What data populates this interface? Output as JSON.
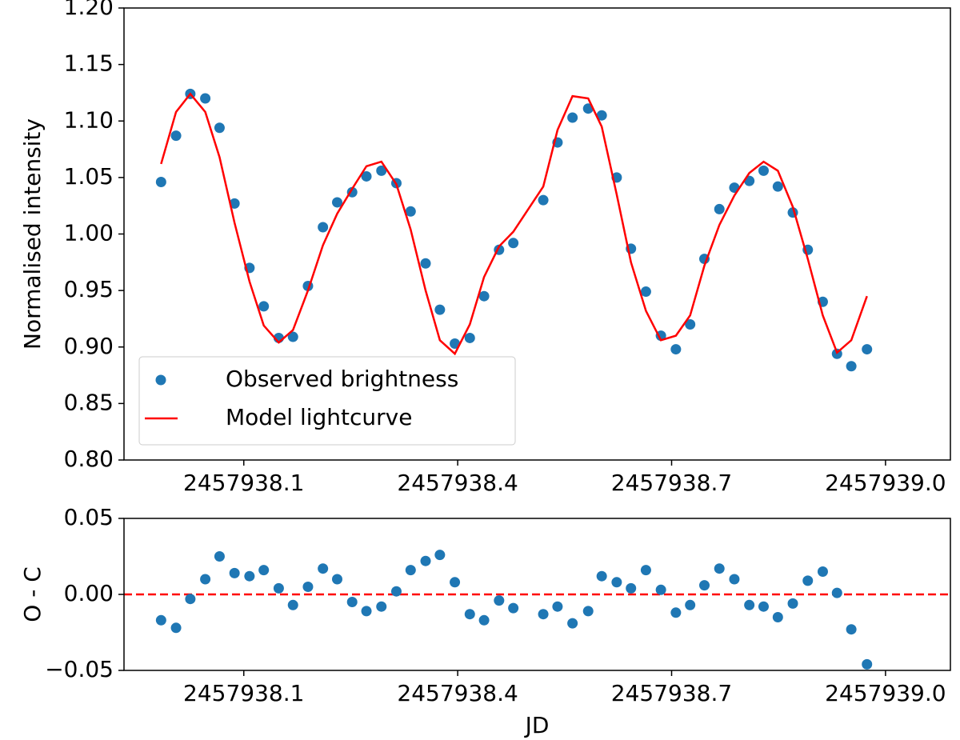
{
  "chart_data": [
    {
      "type": "scatter",
      "ylabel": "Normalised intensity",
      "legend": "lower left",
      "x": [
        2457937.984,
        2457938.005,
        2457938.025,
        2457938.046,
        2457938.066,
        2457938.087,
        2457938.108,
        2457938.128,
        2457938.149,
        2457938.169,
        2457938.19,
        2457938.211,
        2457938.231,
        2457938.252,
        2457938.272,
        2457938.293,
        2457938.314,
        2457938.334,
        2457938.355,
        2457938.375,
        2457938.396,
        2457938.417,
        2457938.437,
        2457938.458,
        2457938.478,
        2457938.52,
        2457938.54,
        2457938.561,
        2457938.583,
        2457938.602,
        2457938.623,
        2457938.643,
        2457938.664,
        2457938.685,
        2457938.706,
        2457938.726,
        2457938.746,
        2457938.767,
        2457938.788,
        2457938.809,
        2457938.829,
        2457938.849,
        2457938.87,
        2457938.891,
        2457938.912,
        2457938.932,
        2457938.952,
        2457938.974
      ],
      "series": [
        {
          "name": "Observed brightness",
          "color": "#1f77b4",
          "style": "markers",
          "values": [
            1.046,
            1.087,
            1.124,
            1.12,
            1.094,
            1.027,
            0.97,
            0.936,
            0.908,
            0.909,
            0.954,
            1.006,
            1.028,
            1.037,
            1.051,
            1.056,
            1.045,
            1.02,
            0.974,
            0.933,
            0.903,
            0.908,
            0.945,
            0.986,
            0.992,
            1.03,
            1.081,
            1.103,
            1.111,
            1.105,
            1.05,
            0.987,
            0.949,
            0.91,
            0.898,
            0.92,
            0.978,
            1.022,
            1.041,
            1.047,
            1.056,
            1.042,
            1.019,
            0.986,
            0.94,
            0.894,
            0.883,
            0.898
          ]
        },
        {
          "name": "Model lightcurve",
          "color": "#ff0000",
          "style": "line",
          "values": [
            1.062,
            1.108,
            1.124,
            1.108,
            1.068,
            1.01,
            0.958,
            0.919,
            0.904,
            0.915,
            0.95,
            0.99,
            1.018,
            1.04,
            1.06,
            1.064,
            1.044,
            1.004,
            0.95,
            0.906,
            0.894,
            0.92,
            0.962,
            0.989,
            1.002,
            1.042,
            1.092,
            1.122,
            1.12,
            1.095,
            1.035,
            0.975,
            0.932,
            0.906,
            0.91,
            0.928,
            0.972,
            1.008,
            1.034,
            1.054,
            1.064,
            1.056,
            1.024,
            0.978,
            0.928,
            0.895,
            0.906,
            0.945
          ]
        }
      ],
      "xlim": [
        2457937.932,
        2457939.091
      ],
      "xticks": [
        2457938.1,
        2457938.4,
        2457938.7,
        {
          "value": 2457939,
          "label": "2457939.0"
        }
      ],
      "ylim": [
        0.8,
        1.2
      ],
      "yticks": [
        {
          "value": 0.8,
          "label": "0.80"
        },
        0.85,
        {
          "value": 0.9,
          "label": "0.90"
        },
        0.95,
        {
          "value": 1,
          "label": "1.00"
        },
        1.05,
        {
          "value": 1.1,
          "label": "1.10"
        },
        1.15,
        {
          "value": 1.2,
          "label": "1.20"
        }
      ]
    },
    {
      "type": "scatter",
      "xlabel": "JD",
      "ylabel": "O - C",
      "reference_line": {
        "value": 0,
        "color": "#ff0000",
        "style": "dashed"
      },
      "x": [
        2457937.984,
        2457938.005,
        2457938.025,
        2457938.046,
        2457938.066,
        2457938.087,
        2457938.108,
        2457938.128,
        2457938.149,
        2457938.169,
        2457938.19,
        2457938.211,
        2457938.231,
        2457938.252,
        2457938.272,
        2457938.293,
        2457938.314,
        2457938.334,
        2457938.355,
        2457938.375,
        2457938.396,
        2457938.417,
        2457938.437,
        2457938.458,
        2457938.478,
        2457938.52,
        2457938.54,
        2457938.561,
        2457938.583,
        2457938.602,
        2457938.623,
        2457938.643,
        2457938.664,
        2457938.685,
        2457938.706,
        2457938.726,
        2457938.746,
        2457938.767,
        2457938.788,
        2457938.809,
        2457938.829,
        2457938.849,
        2457938.87,
        2457938.891,
        2457938.912,
        2457938.932,
        2457938.952,
        2457938.974
      ],
      "series": [
        {
          "color": "#1f77b4",
          "style": "markers",
          "values": [
            -0.017,
            -0.022,
            -0.003,
            0.01,
            0.025,
            0.014,
            0.012,
            0.016,
            0.004,
            -0.007,
            0.005,
            0.017,
            0.01,
            -0.005,
            -0.011,
            -0.008,
            0.002,
            0.016,
            0.022,
            0.026,
            0.008,
            -0.013,
            -0.017,
            -0.004,
            -0.009,
            -0.013,
            -0.008,
            -0.019,
            -0.011,
            0.012,
            0.008,
            0.004,
            0.016,
            0.003,
            -0.012,
            -0.007,
            0.006,
            0.017,
            0.01,
            -0.007,
            -0.008,
            -0.015,
            -0.006,
            0.009,
            0.015,
            0.001,
            -0.023,
            -0.046
          ]
        }
      ],
      "xlim": [
        2457937.932,
        2457939.091
      ],
      "xticks": [
        2457938.1,
        2457938.4,
        2457938.7,
        {
          "value": 2457939,
          "label": "2457939.0"
        }
      ],
      "ylim": [
        -0.05,
        0.05
      ],
      "yticks": [
        {
          "value": -0.05,
          "label": "−0.05"
        },
        {
          "value": 0,
          "label": "0.00"
        },
        0.05
      ]
    }
  ]
}
